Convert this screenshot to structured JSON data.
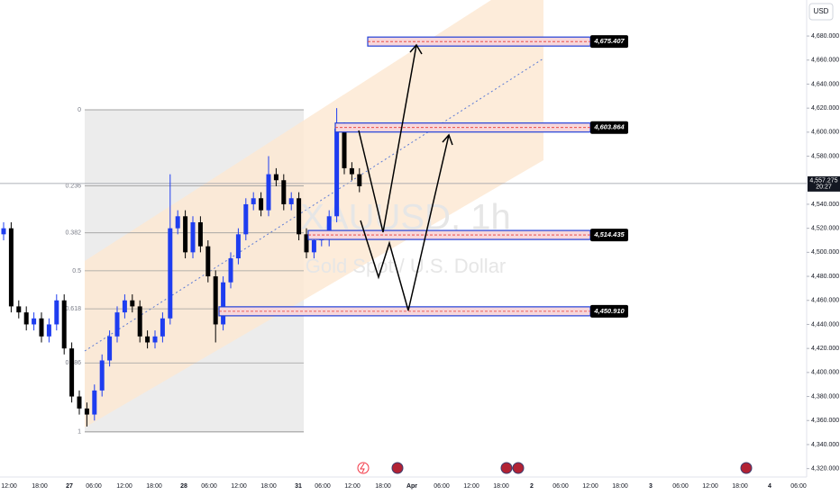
{
  "chart_data": {
    "type": "candlestick",
    "currency": "USD",
    "watermark": "XAUUSD, 1h",
    "watermark_sub": "Gold Spot / U.S. Dollar",
    "up_color": "#1e3df0",
    "down_color": "#000000",
    "open": [
      4515,
      4520,
      4455,
      4450,
      4440,
      4445,
      4430,
      4440,
      4460,
      4420,
      4380,
      4370,
      4365,
      4385,
      4410,
      4430,
      4450,
      4460,
      4455,
      4430,
      4425,
      4430,
      4445,
      4520,
      4530,
      4500,
      4525,
      4505,
      4480,
      4440,
      4475,
      4495,
      4515,
      4540,
      4545,
      4535,
      4565,
      4560,
      4540,
      4545,
      4515,
      4500,
      4510,
      4512,
      4530,
      4603,
      4570,
      4565
    ],
    "high": [
      4525,
      4525,
      4460,
      4455,
      4450,
      4450,
      4445,
      4465,
      4465,
      4425,
      4385,
      4375,
      4390,
      4415,
      4435,
      4455,
      4465,
      4465,
      4460,
      4435,
      4435,
      4450,
      4565,
      4535,
      4535,
      4530,
      4530,
      4510,
      4485,
      4480,
      4500,
      4520,
      4545,
      4550,
      4550,
      4580,
      4570,
      4565,
      4550,
      4550,
      4520,
      4515,
      4517,
      4535,
      4620,
      4608,
      4575,
      4570
    ],
    "low": [
      4510,
      4450,
      4445,
      4435,
      4435,
      4425,
      4425,
      4435,
      4415,
      4375,
      4365,
      4355,
      4360,
      4380,
      4405,
      4425,
      4445,
      4450,
      4425,
      4420,
      4420,
      4425,
      4440,
      4515,
      4495,
      4495,
      4500,
      4475,
      4425,
      4435,
      4470,
      4490,
      4510,
      4535,
      4530,
      4530,
      4555,
      4535,
      4535,
      4510,
      4495,
      4495,
      4505,
      4505,
      4525,
      4565,
      4560,
      4550
    ],
    "close": [
      4520,
      4455,
      4450,
      4440,
      4445,
      4430,
      4440,
      4460,
      4420,
      4380,
      4370,
      4365,
      4385,
      4410,
      4430,
      4450,
      4460,
      4455,
      4430,
      4425,
      4430,
      4445,
      4520,
      4530,
      4500,
      4525,
      4505,
      4480,
      4440,
      4475,
      4495,
      4515,
      4540,
      4545,
      4535,
      4565,
      4560,
      4540,
      4545,
      4515,
      4500,
      4510,
      4512,
      4530,
      4603,
      4570,
      4565,
      4555
    ],
    "ylim": [
      4313,
      4710
    ],
    "yticks": [
      {
        "value": 4680,
        "label": "4,680.000"
      },
      {
        "value": 4660,
        "label": "4,660.000"
      },
      {
        "value": 4640,
        "label": "4,640.000"
      },
      {
        "value": 4620,
        "label": "4,620.000"
      },
      {
        "value": 4600,
        "label": "4,600.000"
      },
      {
        "value": 4580,
        "label": "4,580.000"
      },
      {
        "value": 4540,
        "label": "4,540.000"
      },
      {
        "value": 4520,
        "label": "4,520.000"
      },
      {
        "value": 4500,
        "label": "4,500.000"
      },
      {
        "value": 4480,
        "label": "4,480.000"
      },
      {
        "value": 4460,
        "label": "4,460.000"
      },
      {
        "value": 4440,
        "label": "4,440.000"
      },
      {
        "value": 4420,
        "label": "4,420.000"
      },
      {
        "value": 4400,
        "label": "4,400.000"
      },
      {
        "value": 4380,
        "label": "4,380.000"
      },
      {
        "value": 4360,
        "label": "4,360.000"
      },
      {
        "value": 4340,
        "label": "4,340.000"
      },
      {
        "value": 4320,
        "label": "4,320.000"
      }
    ],
    "x_labels": [
      "12:00",
      "18:00",
      "27",
      "06:00",
      "12:00",
      "18:00",
      "28",
      "06:00",
      "12:00",
      "18:00",
      "31",
      "06:00",
      "12:00",
      "18:00",
      "Apr",
      "06:00",
      "12:00",
      "18:00",
      "2",
      "06:00",
      "12:00",
      "18:00",
      "3",
      "06:00",
      "12:00",
      "18:00",
      "4",
      "06:00"
    ],
    "last_price": {
      "value": 4557.275,
      "label": "4,557.275"
    },
    "countdown": "20:27",
    "fib_range": [
      4618.6,
      4350.6
    ],
    "fib_levels": [
      0,
      0.236,
      0.382,
      0.5,
      0.618,
      0.786,
      1
    ],
    "levels": [
      {
        "value": 4675.407,
        "label": "4,675.407"
      },
      {
        "value": 4603.864,
        "label": "4,603.864"
      },
      {
        "value": 4514.435,
        "label": "4,514.435"
      },
      {
        "value": 4450.91,
        "label": "4,450.910"
      }
    ]
  }
}
